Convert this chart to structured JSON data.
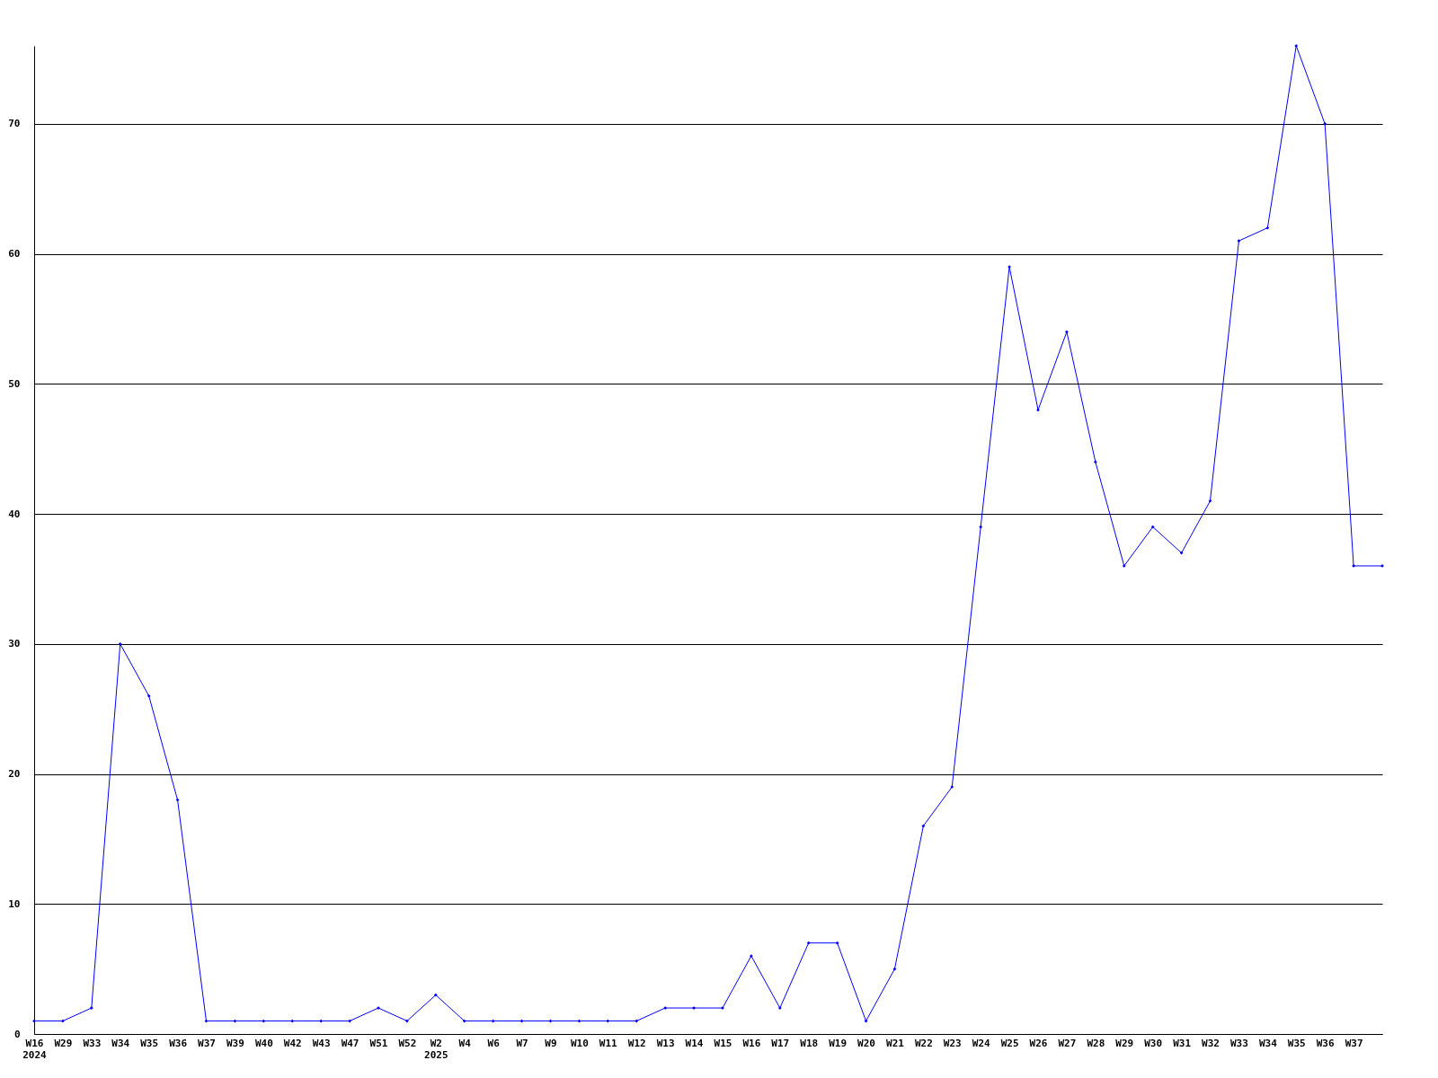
{
  "chart_data": {
    "type": "line",
    "categories": [
      "W16\n2024",
      "W29",
      "W33",
      "W34",
      "W35",
      "W36",
      "W37",
      "W39",
      "W40",
      "W42",
      "W43",
      "W47",
      "W51",
      "W52",
      "W2\n2025",
      "W4",
      "W6",
      "W7",
      "W9",
      "W10",
      "W11",
      "W12",
      "W13",
      "W14",
      "W15",
      "W16",
      "W17",
      "W18",
      "W19",
      "W20",
      "W21",
      "W22",
      "W23",
      "W24",
      "W25",
      "W26",
      "W27",
      "W28",
      "W29",
      "W30",
      "W31",
      "W32",
      "W33",
      "W34",
      "W35",
      "W36",
      "W37",
      null
    ],
    "series": [
      {
        "color": "#0000ff",
        "values": [
          1,
          1,
          2,
          30,
          26,
          18,
          1,
          1,
          1,
          1,
          1,
          1,
          2,
          1,
          3,
          1,
          1,
          1,
          1,
          1,
          1,
          1,
          2,
          2,
          2,
          6,
          2,
          7,
          7,
          1,
          5,
          16,
          19,
          39,
          59,
          48,
          54,
          44,
          36,
          39,
          37,
          41,
          61,
          62,
          76,
          70,
          36,
          36
        ]
      }
    ],
    "ylim": [
      0,
      76
    ],
    "yticks": [
      0,
      10,
      20,
      30,
      40,
      50,
      60,
      70
    ],
    "grid": "y",
    "marker": "diamond",
    "line_style": "solid"
  }
}
